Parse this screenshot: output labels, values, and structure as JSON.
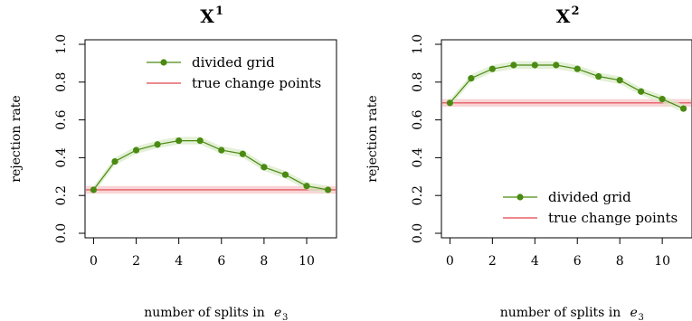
{
  "chart_data": [
    {
      "type": "line",
      "title": "X",
      "title_superscript": "1",
      "xlabel": "number of splits in",
      "xlabel_math": "e",
      "xlabel_sub": "3",
      "ylabel": "rejection rate",
      "xlim": [
        -0.4,
        11.4
      ],
      "ylim": [
        0,
        1.0
      ],
      "x_ticks": [
        "0",
        "2",
        "4",
        "6",
        "8",
        "10"
      ],
      "y_ticks": [
        "0.0",
        "0.2",
        "0.4",
        "0.6",
        "0.8",
        "1.0"
      ],
      "legend_position": "top-right",
      "series": [
        {
          "name": "divided grid",
          "color": "#4a8a12",
          "band_color": "#d9ebc8",
          "x": [
            0,
            1,
            2,
            3,
            4,
            5,
            6,
            7,
            8,
            9,
            10,
            11
          ],
          "values": [
            0.23,
            0.38,
            0.44,
            0.47,
            0.49,
            0.49,
            0.44,
            0.42,
            0.35,
            0.31,
            0.25,
            0.23
          ],
          "lower": [
            0.21,
            0.36,
            0.42,
            0.45,
            0.47,
            0.47,
            0.42,
            0.4,
            0.33,
            0.29,
            0.23,
            0.21
          ],
          "upper": [
            0.25,
            0.4,
            0.46,
            0.49,
            0.51,
            0.51,
            0.46,
            0.44,
            0.37,
            0.33,
            0.27,
            0.25
          ]
        },
        {
          "name": "true change points",
          "color": "#e0434a",
          "band_color": "#f9d4d6",
          "value": 0.23,
          "lower": 0.21,
          "upper": 0.25
        }
      ]
    },
    {
      "type": "line",
      "title": "X",
      "title_superscript": "2",
      "xlabel": "number of splits in",
      "xlabel_math": "e",
      "xlabel_sub": "3",
      "ylabel": "rejection rate",
      "xlim": [
        -0.4,
        11.4
      ],
      "ylim": [
        0,
        1.0
      ],
      "x_ticks": [
        "0",
        "2",
        "4",
        "6",
        "8",
        "10"
      ],
      "y_ticks": [
        "0.0",
        "0.2",
        "0.4",
        "0.6",
        "0.8",
        "1.0"
      ],
      "legend_position": "bottom-right",
      "series": [
        {
          "name": "divided grid",
          "color": "#4a8a12",
          "band_color": "#d9ebc8",
          "x": [
            0,
            1,
            2,
            3,
            4,
            5,
            6,
            7,
            8,
            9,
            10,
            11
          ],
          "values": [
            0.69,
            0.82,
            0.87,
            0.89,
            0.89,
            0.89,
            0.87,
            0.83,
            0.81,
            0.75,
            0.71,
            0.66
          ],
          "lower": [
            0.67,
            0.8,
            0.85,
            0.87,
            0.87,
            0.87,
            0.85,
            0.81,
            0.79,
            0.73,
            0.69,
            0.64
          ],
          "upper": [
            0.71,
            0.84,
            0.89,
            0.91,
            0.91,
            0.91,
            0.89,
            0.85,
            0.83,
            0.77,
            0.73,
            0.68
          ]
        },
        {
          "name": "true change points",
          "color": "#e0434a",
          "band_color": "#f9d4d6",
          "value": 0.69,
          "lower": 0.67,
          "upper": 0.71
        }
      ]
    }
  ]
}
